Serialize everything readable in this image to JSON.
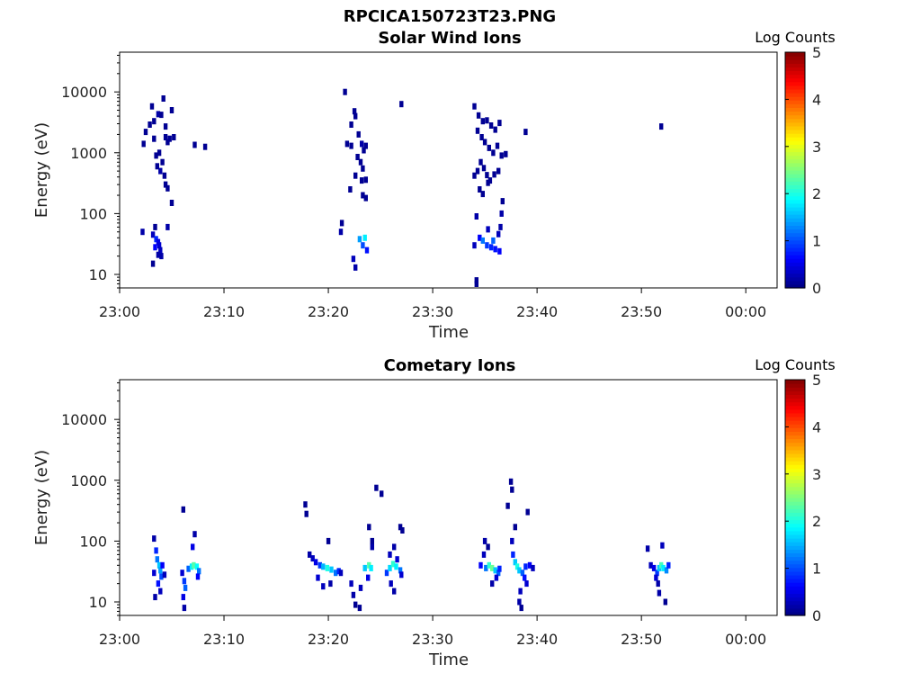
{
  "figure_title": "RPCICA150723T23.PNG",
  "colors": {
    "colormap": [
      "#00007f",
      "#0000ff",
      "#007fff",
      "#00ffff",
      "#7fff7f",
      "#ffff00",
      "#ff7f00",
      "#ff0000",
      "#7f0000"
    ]
  },
  "chart_data": [
    {
      "type": "heatmap",
      "title": "Solar Wind Ions",
      "xlabel": "Time",
      "ylabel": "Energy (eV)",
      "x_ticks": [
        "23:00",
        "23:10",
        "23:20",
        "23:30",
        "23:40",
        "23:50",
        "00:00"
      ],
      "x_range_minutes": [
        0,
        63
      ],
      "y_scale": "log",
      "y_ticks": [
        10,
        100,
        1000,
        10000
      ],
      "y_tick_labels": [
        "10",
        "100",
        "1000",
        "10000"
      ],
      "y_range": [
        6,
        45000
      ],
      "colorbar": {
        "label": "Log Counts",
        "ticks": [
          "0",
          "1",
          "2",
          "3",
          "4",
          "5"
        ],
        "range": [
          0,
          5
        ]
      },
      "cells": [
        [
          2.2,
          50,
          0.2
        ],
        [
          3.2,
          45,
          0.3
        ],
        [
          3.4,
          60,
          0.1
        ],
        [
          3.5,
          38,
          0.8
        ],
        [
          3.7,
          34,
          0.5
        ],
        [
          3.8,
          30,
          0.4
        ],
        [
          3.9,
          25,
          0.3
        ],
        [
          3.7,
          21,
          0.2
        ],
        [
          4.0,
          20,
          0.2
        ],
        [
          3.2,
          15,
          0.1
        ],
        [
          4.6,
          60,
          0.2
        ],
        [
          3.4,
          28,
          0.6
        ],
        [
          2.3,
          1400,
          0.1
        ],
        [
          2.5,
          2200,
          0.1
        ],
        [
          2.9,
          2900,
          0.1
        ],
        [
          3.1,
          5800,
          0.1
        ],
        [
          3.3,
          1700,
          0.1
        ],
        [
          3.5,
          900,
          0.1
        ],
        [
          3.7,
          4300,
          0.2
        ],
        [
          4.0,
          4200,
          0.1
        ],
        [
          4.2,
          7800,
          0.1
        ],
        [
          4.4,
          2700,
          0.1
        ],
        [
          4.6,
          1500,
          0.1
        ],
        [
          4.4,
          1800,
          0.1
        ],
        [
          4.8,
          1700,
          0.1
        ],
        [
          5.0,
          5000,
          0.1
        ],
        [
          5.2,
          1800,
          0.1
        ],
        [
          3.6,
          600,
          0.1
        ],
        [
          3.9,
          500,
          0.2
        ],
        [
          4.1,
          700,
          0.1
        ],
        [
          4.3,
          420,
          0.1
        ],
        [
          4.4,
          300,
          0.1
        ],
        [
          4.6,
          260,
          0.1
        ],
        [
          5.0,
          150,
          0.1
        ],
        [
          7.2,
          1350,
          0.1
        ],
        [
          8.2,
          1250,
          0.1
        ],
        [
          3.3,
          3300,
          0.1
        ],
        [
          3.8,
          1000,
          0.1
        ],
        [
          21.2,
          50,
          0.2
        ],
        [
          21.3,
          70,
          0.1
        ],
        [
          23.0,
          38,
          1.4
        ],
        [
          23.5,
          40,
          1.8
        ],
        [
          23.3,
          30,
          1.0
        ],
        [
          23.7,
          25,
          0.7
        ],
        [
          22.4,
          18,
          0.3
        ],
        [
          22.6,
          13,
          0.2
        ],
        [
          21.6,
          10000,
          0.1
        ],
        [
          22.2,
          2900,
          0.1
        ],
        [
          22.5,
          4800,
          0.1
        ],
        [
          22.6,
          4000,
          0.1
        ],
        [
          21.8,
          1400,
          0.1
        ],
        [
          22.2,
          1300,
          0.1
        ],
        [
          22.9,
          2000,
          0.1
        ],
        [
          23.2,
          1400,
          0.2
        ],
        [
          23.4,
          1100,
          0.1
        ],
        [
          23.6,
          1300,
          0.1
        ],
        [
          22.8,
          850,
          0.1
        ],
        [
          23.1,
          700,
          0.1
        ],
        [
          23.3,
          550,
          0.1
        ],
        [
          22.6,
          420,
          0.1
        ],
        [
          23.2,
          350,
          0.1
        ],
        [
          23.6,
          360,
          0.1
        ],
        [
          22.1,
          250,
          0.1
        ],
        [
          23.3,
          200,
          0.1
        ],
        [
          23.6,
          180,
          0.1
        ],
        [
          27.0,
          6300,
          0.1
        ],
        [
          34.0,
          30,
          0.3
        ],
        [
          34.2,
          90,
          0.2
        ],
        [
          34.5,
          40,
          0.6
        ],
        [
          34.8,
          36,
          1.2
        ],
        [
          35.2,
          30,
          0.9
        ],
        [
          35.6,
          28,
          0.8
        ],
        [
          36.0,
          26,
          0.7
        ],
        [
          36.4,
          24,
          0.6
        ],
        [
          35.3,
          55,
          0.3
        ],
        [
          35.8,
          36,
          1.1
        ],
        [
          36.3,
          46,
          0.3
        ],
        [
          36.5,
          60,
          0.2
        ],
        [
          36.6,
          100,
          0.2
        ],
        [
          36.7,
          160,
          0.1
        ],
        [
          34.2,
          8,
          0.1
        ],
        [
          34.2,
          7,
          0.1
        ],
        [
          34.0,
          5800,
          0.1
        ],
        [
          34.4,
          4100,
          0.1
        ],
        [
          34.8,
          3300,
          0.1
        ],
        [
          35.2,
          3400,
          0.1
        ],
        [
          35.6,
          2800,
          0.1
        ],
        [
          36.0,
          2400,
          0.1
        ],
        [
          36.4,
          3100,
          0.1
        ],
        [
          34.3,
          2300,
          0.1
        ],
        [
          34.7,
          1800,
          0.1
        ],
        [
          35.0,
          1500,
          0.1
        ],
        [
          35.4,
          1200,
          0.1
        ],
        [
          35.8,
          1000,
          0.1
        ],
        [
          36.2,
          1300,
          0.1
        ],
        [
          36.6,
          900,
          0.1
        ],
        [
          34.0,
          420,
          0.1
        ],
        [
          34.3,
          500,
          0.1
        ],
        [
          34.6,
          700,
          0.1
        ],
        [
          34.9,
          560,
          0.1
        ],
        [
          35.2,
          430,
          0.1
        ],
        [
          35.5,
          350,
          0.1
        ],
        [
          34.5,
          250,
          0.1
        ],
        [
          34.8,
          210,
          0.1
        ],
        [
          35.3,
          320,
          0.1
        ],
        [
          35.9,
          440,
          0.1
        ],
        [
          36.3,
          500,
          0.1
        ],
        [
          37.0,
          950,
          0.1
        ],
        [
          38.9,
          2200,
          0.1
        ],
        [
          51.9,
          2700,
          0.1
        ]
      ]
    },
    {
      "type": "heatmap",
      "title": "Cometary Ions",
      "xlabel": "Time",
      "ylabel": "Energy (eV)",
      "x_ticks": [
        "23:00",
        "23:10",
        "23:20",
        "23:30",
        "23:40",
        "23:50",
        "00:00"
      ],
      "x_range_minutes": [
        0,
        63
      ],
      "y_scale": "log",
      "y_ticks": [
        10,
        100,
        1000,
        10000
      ],
      "y_tick_labels": [
        "10",
        "100",
        "1000",
        "10000"
      ],
      "y_range": [
        6,
        45000
      ],
      "colorbar": {
        "label": "Log Counts",
        "ticks": [
          "0",
          "1",
          "2",
          "3",
          "4",
          "5"
        ],
        "range": [
          0,
          5
        ]
      },
      "cells": [
        [
          3.3,
          110,
          0.2
        ],
        [
          3.5,
          70,
          0.8
        ],
        [
          3.6,
          50,
          1.2
        ],
        [
          3.8,
          40,
          1.6
        ],
        [
          3.9,
          33,
          1.4
        ],
        [
          4.0,
          26,
          1.0
        ],
        [
          3.7,
          20,
          0.7
        ],
        [
          3.9,
          15,
          0.3
        ],
        [
          3.4,
          12,
          0.2
        ],
        [
          4.1,
          40,
          0.6
        ],
        [
          3.3,
          30,
          0.4
        ],
        [
          4.3,
          28,
          0.3
        ],
        [
          6.0,
          30,
          0.4
        ],
        [
          6.2,
          22,
          0.9
        ],
        [
          6.3,
          17,
          1.1
        ],
        [
          6.1,
          12,
          0.5
        ],
        [
          6.2,
          8,
          0.2
        ],
        [
          6.6,
          35,
          1.1
        ],
        [
          6.9,
          38,
          1.8
        ],
        [
          7.1,
          40,
          2.3
        ],
        [
          7.4,
          38,
          1.9
        ],
        [
          7.6,
          32,
          1.2
        ],
        [
          7.0,
          80,
          0.5
        ],
        [
          7.2,
          130,
          0.2
        ],
        [
          7.5,
          26,
          0.6
        ],
        [
          6.1,
          330,
          0.1
        ],
        [
          17.8,
          400,
          0.1
        ],
        [
          17.9,
          280,
          0.1
        ],
        [
          18.2,
          60,
          0.2
        ],
        [
          18.5,
          52,
          0.3
        ],
        [
          18.8,
          45,
          0.5
        ],
        [
          19.2,
          40,
          0.9
        ],
        [
          19.5,
          38,
          1.5
        ],
        [
          19.9,
          36,
          2.0
        ],
        [
          20.3,
          34,
          1.6
        ],
        [
          20.7,
          30,
          1.2
        ],
        [
          21.0,
          32,
          0.8
        ],
        [
          19.0,
          25,
          0.4
        ],
        [
          19.5,
          18,
          0.3
        ],
        [
          20.2,
          20,
          0.2
        ],
        [
          20.0,
          100,
          0.1
        ],
        [
          21.2,
          30,
          0.3
        ],
        [
          22.2,
          20,
          0.3
        ],
        [
          22.4,
          13,
          0.2
        ],
        [
          22.6,
          9,
          0.1
        ],
        [
          23.0,
          8,
          0.1
        ],
        [
          23.5,
          36,
          1.6
        ],
        [
          23.9,
          40,
          2.3
        ],
        [
          24.1,
          36,
          1.8
        ],
        [
          23.8,
          25,
          0.5
        ],
        [
          23.1,
          17,
          0.3
        ],
        [
          24.2,
          100,
          0.1
        ],
        [
          23.9,
          170,
          0.1
        ],
        [
          24.2,
          80,
          0.2
        ],
        [
          24.6,
          750,
          0.1
        ],
        [
          25.1,
          600,
          0.1
        ],
        [
          25.6,
          30,
          0.9
        ],
        [
          25.9,
          36,
          1.7
        ],
        [
          26.2,
          42,
          2.1
        ],
        [
          26.5,
          38,
          1.8
        ],
        [
          26.9,
          33,
          1.2
        ],
        [
          25.9,
          60,
          0.3
        ],
        [
          26.3,
          80,
          0.2
        ],
        [
          26.6,
          50,
          0.4
        ],
        [
          27.0,
          28,
          0.4
        ],
        [
          26.0,
          20,
          0.3
        ],
        [
          26.3,
          15,
          0.2
        ],
        [
          27.1,
          150,
          0.1
        ],
        [
          26.9,
          170,
          0.1
        ],
        [
          34.6,
          40,
          0.6
        ],
        [
          34.9,
          60,
          0.3
        ],
        [
          35.1,
          36,
          1.2
        ],
        [
          35.4,
          40,
          2.1
        ],
        [
          35.7,
          36,
          2.4
        ],
        [
          36.0,
          33,
          1.6
        ],
        [
          36.3,
          30,
          1.1
        ],
        [
          35.0,
          100,
          0.2
        ],
        [
          35.3,
          80,
          0.1
        ],
        [
          36.1,
          25,
          0.4
        ],
        [
          35.7,
          20,
          0.2
        ],
        [
          36.4,
          35,
          0.8
        ],
        [
          37.2,
          380,
          0.1
        ],
        [
          37.5,
          950,
          0.1
        ],
        [
          37.6,
          700,
          0.1
        ],
        [
          37.6,
          100,
          0.3
        ],
        [
          37.7,
          60,
          0.8
        ],
        [
          37.9,
          45,
          1.6
        ],
        [
          38.1,
          38,
          2.0
        ],
        [
          38.3,
          33,
          1.6
        ],
        [
          38.6,
          30,
          1.1
        ],
        [
          38.8,
          25,
          0.7
        ],
        [
          39.0,
          20,
          0.4
        ],
        [
          38.4,
          15,
          0.3
        ],
        [
          38.3,
          10,
          0.2
        ],
        [
          38.5,
          8,
          0.1
        ],
        [
          38.9,
          38,
          0.8
        ],
        [
          39.3,
          40,
          0.6
        ],
        [
          39.6,
          36,
          0.3
        ],
        [
          37.9,
          170,
          0.1
        ],
        [
          39.1,
          300,
          0.1
        ],
        [
          50.6,
          75,
          0.2
        ],
        [
          50.9,
          40,
          0.3
        ],
        [
          51.2,
          36,
          0.5
        ],
        [
          51.5,
          30,
          0.9
        ],
        [
          51.7,
          36,
          1.6
        ],
        [
          51.9,
          40,
          2.2
        ],
        [
          52.1,
          36,
          1.8
        ],
        [
          52.4,
          33,
          1.3
        ],
        [
          52.6,
          40,
          0.8
        ],
        [
          51.4,
          25,
          0.4
        ],
        [
          51.6,
          20,
          0.2
        ],
        [
          51.7,
          14,
          0.2
        ],
        [
          52.0,
          85,
          0.3
        ],
        [
          52.3,
          10,
          0.1
        ]
      ]
    }
  ]
}
